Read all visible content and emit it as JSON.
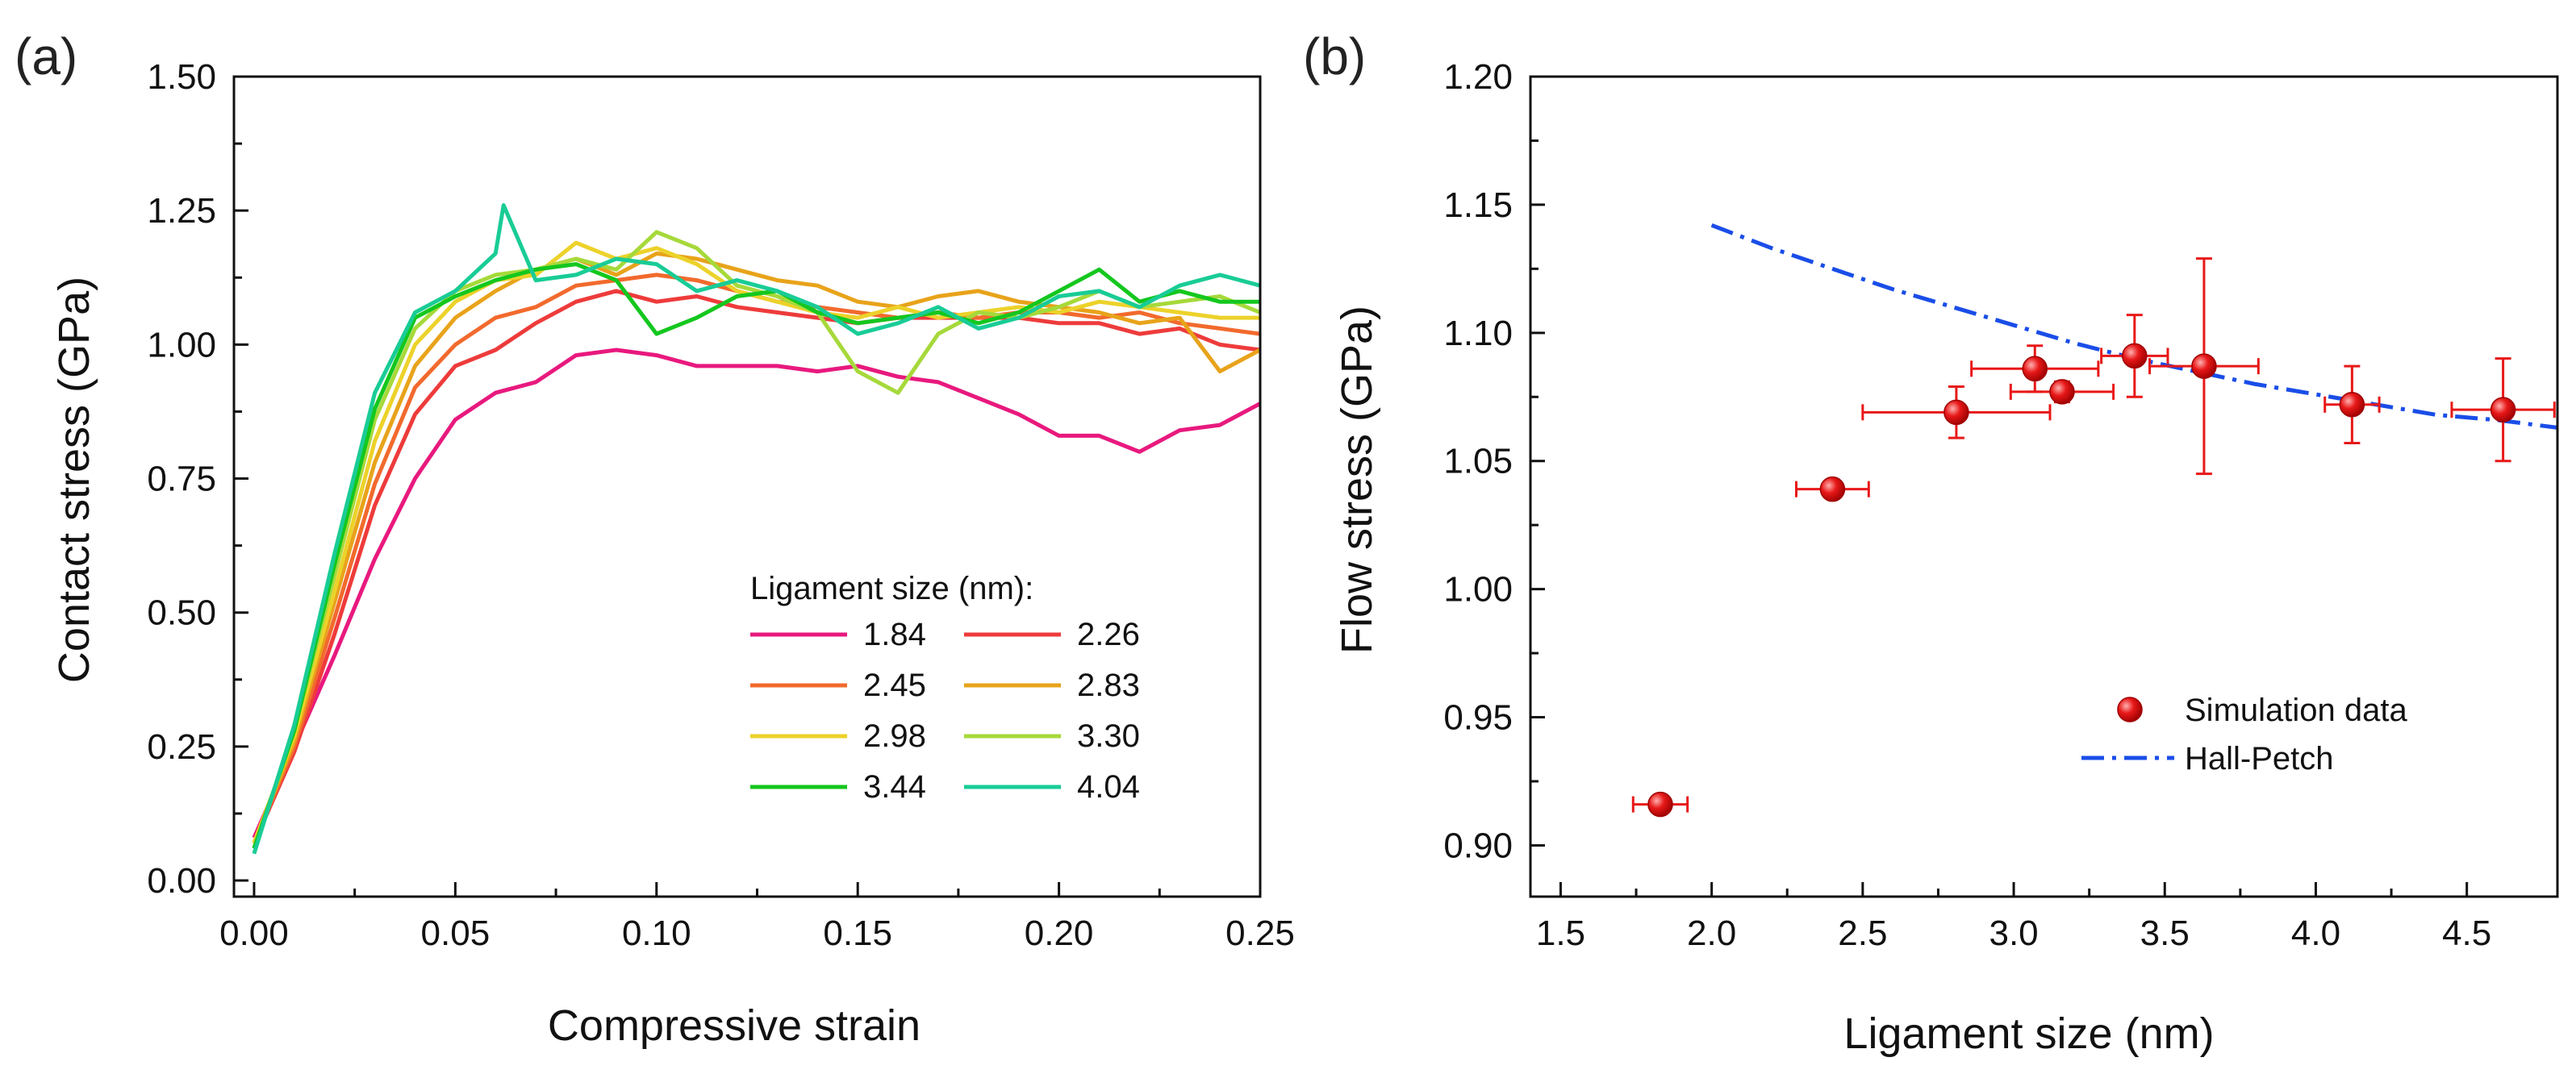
{
  "chart_data": [
    {
      "type": "line",
      "panel": "(a)",
      "xlabel": "Compressive strain",
      "ylabel": "Contact stress (GPa)",
      "xlim": [
        -0.005,
        0.25
      ],
      "ylim": [
        -0.03,
        1.5
      ],
      "xticks": [
        "0.00",
        "0.05",
        "0.10",
        "0.15",
        "0.20",
        "0.25"
      ],
      "yticks": [
        "0.00",
        "0.25",
        "0.50",
        "0.75",
        "1.00",
        "1.25",
        "1.50"
      ],
      "legend_title": "Ligament size (nm):",
      "series": [
        {
          "name": "1.84",
          "color": "#e8197e",
          "values": [
            [
              0.0,
              0.08
            ],
            [
              0.01,
              0.25
            ],
            [
              0.02,
              0.42
            ],
            [
              0.03,
              0.6
            ],
            [
              0.04,
              0.75
            ],
            [
              0.05,
              0.86
            ],
            [
              0.06,
              0.91
            ],
            [
              0.07,
              0.93
            ],
            [
              0.08,
              0.98
            ],
            [
              0.09,
              0.99
            ],
            [
              0.1,
              0.98
            ],
            [
              0.11,
              0.96
            ],
            [
              0.12,
              0.96
            ],
            [
              0.13,
              0.96
            ],
            [
              0.14,
              0.95
            ],
            [
              0.15,
              0.96
            ],
            [
              0.16,
              0.94
            ],
            [
              0.17,
              0.93
            ],
            [
              0.18,
              0.9
            ],
            [
              0.19,
              0.87
            ],
            [
              0.2,
              0.83
            ],
            [
              0.21,
              0.83
            ],
            [
              0.22,
              0.8
            ],
            [
              0.23,
              0.84
            ],
            [
              0.24,
              0.85
            ],
            [
              0.25,
              0.89
            ]
          ]
        },
        {
          "name": "2.26",
          "color": "#ee3b3b",
          "values": [
            [
              0.0,
              0.07
            ],
            [
              0.01,
              0.24
            ],
            [
              0.02,
              0.46
            ],
            [
              0.03,
              0.7
            ],
            [
              0.04,
              0.87
            ],
            [
              0.05,
              0.96
            ],
            [
              0.06,
              0.99
            ],
            [
              0.07,
              1.04
            ],
            [
              0.08,
              1.08
            ],
            [
              0.09,
              1.1
            ],
            [
              0.1,
              1.08
            ],
            [
              0.11,
              1.09
            ],
            [
              0.12,
              1.07
            ],
            [
              0.13,
              1.06
            ],
            [
              0.14,
              1.05
            ],
            [
              0.15,
              1.04
            ],
            [
              0.16,
              1.05
            ],
            [
              0.17,
              1.05
            ],
            [
              0.18,
              1.05
            ],
            [
              0.19,
              1.05
            ],
            [
              0.2,
              1.04
            ],
            [
              0.21,
              1.04
            ],
            [
              0.22,
              1.02
            ],
            [
              0.23,
              1.03
            ],
            [
              0.24,
              1.0
            ],
            [
              0.25,
              0.99
            ]
          ]
        },
        {
          "name": "2.45",
          "color": "#f26a2d",
          "values": [
            [
              0.0,
              0.07
            ],
            [
              0.01,
              0.25
            ],
            [
              0.02,
              0.49
            ],
            [
              0.03,
              0.74
            ],
            [
              0.04,
              0.92
            ],
            [
              0.05,
              1.0
            ],
            [
              0.06,
              1.05
            ],
            [
              0.07,
              1.07
            ],
            [
              0.08,
              1.11
            ],
            [
              0.09,
              1.12
            ],
            [
              0.1,
              1.13
            ],
            [
              0.11,
              1.12
            ],
            [
              0.12,
              1.1
            ],
            [
              0.13,
              1.08
            ],
            [
              0.14,
              1.07
            ],
            [
              0.15,
              1.06
            ],
            [
              0.16,
              1.05
            ],
            [
              0.17,
              1.06
            ],
            [
              0.18,
              1.05
            ],
            [
              0.19,
              1.06
            ],
            [
              0.2,
              1.06
            ],
            [
              0.21,
              1.05
            ],
            [
              0.22,
              1.06
            ],
            [
              0.23,
              1.04
            ],
            [
              0.24,
              1.03
            ],
            [
              0.25,
              1.02
            ]
          ]
        },
        {
          "name": "2.83",
          "color": "#e8a31a",
          "values": [
            [
              0.0,
              0.07
            ],
            [
              0.01,
              0.26
            ],
            [
              0.02,
              0.52
            ],
            [
              0.03,
              0.78
            ],
            [
              0.04,
              0.96
            ],
            [
              0.05,
              1.05
            ],
            [
              0.06,
              1.1
            ],
            [
              0.07,
              1.14
            ],
            [
              0.08,
              1.16
            ],
            [
              0.09,
              1.13
            ],
            [
              0.1,
              1.17
            ],
            [
              0.11,
              1.16
            ],
            [
              0.12,
              1.14
            ],
            [
              0.13,
              1.12
            ],
            [
              0.14,
              1.11
            ],
            [
              0.15,
              1.08
            ],
            [
              0.16,
              1.07
            ],
            [
              0.17,
              1.09
            ],
            [
              0.18,
              1.1
            ],
            [
              0.19,
              1.08
            ],
            [
              0.2,
              1.07
            ],
            [
              0.21,
              1.06
            ],
            [
              0.22,
              1.04
            ],
            [
              0.23,
              1.05
            ],
            [
              0.24,
              0.95
            ],
            [
              0.25,
              0.99
            ]
          ]
        },
        {
          "name": "2.98",
          "color": "#ecd22a",
          "values": [
            [
              0.0,
              0.07
            ],
            [
              0.01,
              0.27
            ],
            [
              0.02,
              0.54
            ],
            [
              0.03,
              0.82
            ],
            [
              0.04,
              1.0
            ],
            [
              0.05,
              1.08
            ],
            [
              0.06,
              1.12
            ],
            [
              0.07,
              1.13
            ],
            [
              0.08,
              1.19
            ],
            [
              0.09,
              1.16
            ],
            [
              0.1,
              1.18
            ],
            [
              0.11,
              1.15
            ],
            [
              0.12,
              1.1
            ],
            [
              0.13,
              1.08
            ],
            [
              0.14,
              1.06
            ],
            [
              0.15,
              1.05
            ],
            [
              0.16,
              1.07
            ],
            [
              0.17,
              1.05
            ],
            [
              0.18,
              1.06
            ],
            [
              0.19,
              1.07
            ],
            [
              0.2,
              1.06
            ],
            [
              0.21,
              1.08
            ],
            [
              0.22,
              1.07
            ],
            [
              0.23,
              1.06
            ],
            [
              0.24,
              1.05
            ],
            [
              0.25,
              1.05
            ]
          ]
        },
        {
          "name": "3.30",
          "color": "#a6d93a",
          "values": [
            [
              0.0,
              0.06
            ],
            [
              0.01,
              0.28
            ],
            [
              0.02,
              0.57
            ],
            [
              0.03,
              0.86
            ],
            [
              0.04,
              1.03
            ],
            [
              0.05,
              1.1
            ],
            [
              0.06,
              1.13
            ],
            [
              0.07,
              1.14
            ],
            [
              0.08,
              1.16
            ],
            [
              0.09,
              1.14
            ],
            [
              0.1,
              1.21
            ],
            [
              0.11,
              1.18
            ],
            [
              0.12,
              1.11
            ],
            [
              0.13,
              1.09
            ],
            [
              0.14,
              1.06
            ],
            [
              0.15,
              0.95
            ],
            [
              0.16,
              0.91
            ],
            [
              0.17,
              1.02
            ],
            [
              0.18,
              1.06
            ],
            [
              0.19,
              1.05
            ],
            [
              0.2,
              1.07
            ],
            [
              0.21,
              1.1
            ],
            [
              0.22,
              1.07
            ],
            [
              0.23,
              1.08
            ],
            [
              0.24,
              1.09
            ],
            [
              0.25,
              1.06
            ]
          ]
        },
        {
          "name": "3.44",
          "color": "#14c71e",
          "values": [
            [
              0.0,
              0.06
            ],
            [
              0.01,
              0.28
            ],
            [
              0.02,
              0.59
            ],
            [
              0.03,
              0.88
            ],
            [
              0.04,
              1.05
            ],
            [
              0.05,
              1.09
            ],
            [
              0.06,
              1.12
            ],
            [
              0.07,
              1.14
            ],
            [
              0.08,
              1.15
            ],
            [
              0.09,
              1.12
            ],
            [
              0.1,
              1.02
            ],
            [
              0.11,
              1.05
            ],
            [
              0.12,
              1.09
            ],
            [
              0.13,
              1.1
            ],
            [
              0.14,
              1.06
            ],
            [
              0.15,
              1.04
            ],
            [
              0.16,
              1.05
            ],
            [
              0.17,
              1.06
            ],
            [
              0.18,
              1.04
            ],
            [
              0.19,
              1.06
            ],
            [
              0.2,
              1.1
            ],
            [
              0.21,
              1.14
            ],
            [
              0.22,
              1.08
            ],
            [
              0.23,
              1.1
            ],
            [
              0.24,
              1.08
            ],
            [
              0.25,
              1.08
            ]
          ]
        },
        {
          "name": "4.04",
          "color": "#19cc96",
          "values": [
            [
              0.0,
              0.05
            ],
            [
              0.01,
              0.29
            ],
            [
              0.02,
              0.61
            ],
            [
              0.03,
              0.91
            ],
            [
              0.04,
              1.06
            ],
            [
              0.05,
              1.1
            ],
            [
              0.06,
              1.17
            ],
            [
              0.062,
              1.26
            ],
            [
              0.07,
              1.12
            ],
            [
              0.08,
              1.13
            ],
            [
              0.09,
              1.16
            ],
            [
              0.1,
              1.15
            ],
            [
              0.11,
              1.1
            ],
            [
              0.12,
              1.12
            ],
            [
              0.13,
              1.1
            ],
            [
              0.14,
              1.07
            ],
            [
              0.15,
              1.02
            ],
            [
              0.16,
              1.04
            ],
            [
              0.17,
              1.07
            ],
            [
              0.18,
              1.03
            ],
            [
              0.19,
              1.05
            ],
            [
              0.2,
              1.09
            ],
            [
              0.21,
              1.1
            ],
            [
              0.22,
              1.07
            ],
            [
              0.23,
              1.11
            ],
            [
              0.24,
              1.13
            ],
            [
              0.25,
              1.11
            ]
          ]
        }
      ]
    },
    {
      "type": "scatter",
      "panel": "(b)",
      "xlabel": "Ligament size (nm)",
      "ylabel": "Flow stress (GPa)",
      "xlim": [
        1.4,
        4.8
      ],
      "ylim": [
        0.88,
        1.2
      ],
      "xticks": [
        "1.5",
        "2.0",
        "2.5",
        "3.0",
        "3.5",
        "4.0",
        "4.5"
      ],
      "yticks": [
        "0.90",
        "0.95",
        "1.00",
        "1.05",
        "1.10",
        "1.15",
        "1.20"
      ],
      "series": [
        {
          "name": "Simulation data",
          "color": "#e81818",
          "points": [
            {
              "x": 1.83,
              "y": 0.916,
              "xerr": 0.09,
              "yerr": 0.0
            },
            {
              "x": 2.4,
              "y": 1.039,
              "xerr": 0.12,
              "yerr": 0.0
            },
            {
              "x": 2.81,
              "y": 1.069,
              "xerr": 0.31,
              "yerr": 0.01
            },
            {
              "x": 3.07,
              "y": 1.086,
              "xerr": 0.21,
              "yerr": 0.009
            },
            {
              "x": 3.16,
              "y": 1.077,
              "xerr": 0.17,
              "yerr": 0.004
            },
            {
              "x": 3.4,
              "y": 1.091,
              "xerr": 0.11,
              "yerr": 0.016
            },
            {
              "x": 3.63,
              "y": 1.087,
              "xerr": 0.18,
              "yerr": 0.042
            },
            {
              "x": 4.12,
              "y": 1.072,
              "xerr": 0.09,
              "yerr": 0.015
            },
            {
              "x": 4.62,
              "y": 1.07,
              "xerr": 0.17,
              "yerr": 0.02
            }
          ]
        },
        {
          "name": "Hall-Petch",
          "color": "#1a4de8",
          "line": "dash-dot",
          "values": [
            [
              2.0,
              1.142
            ],
            [
              2.2,
              1.133
            ],
            [
              2.4,
              1.125
            ],
            [
              2.6,
              1.117
            ],
            [
              2.8,
              1.11
            ],
            [
              3.0,
              1.103
            ],
            [
              3.2,
              1.096
            ],
            [
              3.4,
              1.09
            ],
            [
              3.6,
              1.085
            ],
            [
              3.8,
              1.08
            ],
            [
              4.0,
              1.076
            ],
            [
              4.2,
              1.072
            ],
            [
              4.4,
              1.068
            ],
            [
              4.6,
              1.066
            ],
            [
              4.8,
              1.063
            ]
          ]
        }
      ]
    }
  ]
}
